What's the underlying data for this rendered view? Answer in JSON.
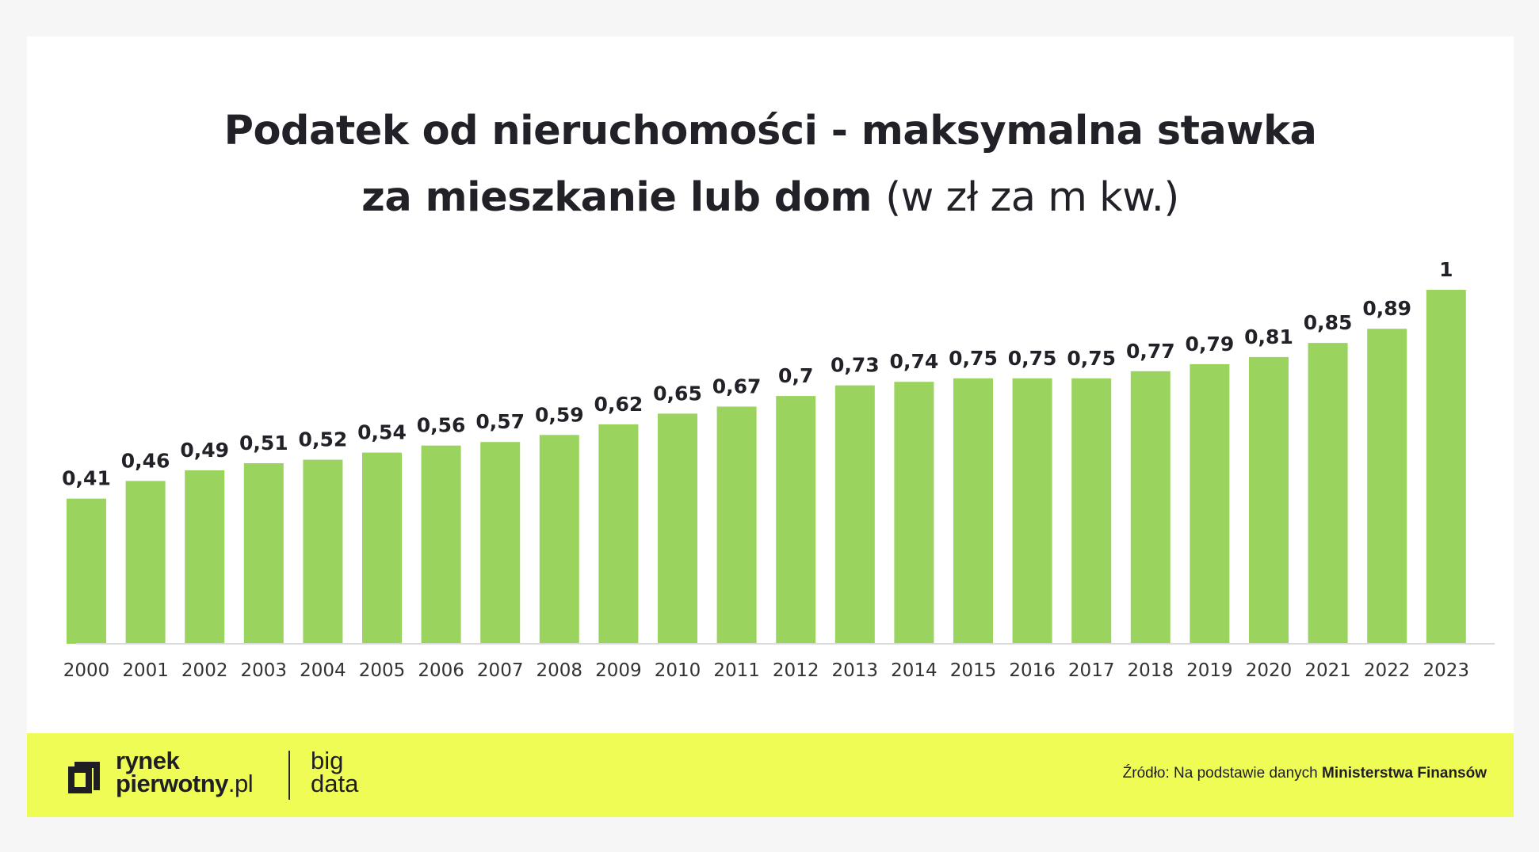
{
  "title": {
    "line1": "Podatek od nieruchomości - maksymalna stawka",
    "line2_bold": "za mieszkanie lub dom",
    "line2_light": "(w zł za m kw.)"
  },
  "colors": {
    "bar": "#9bd35f",
    "footer_bg": "#eefc55",
    "text": "#222128"
  },
  "chart_data": {
    "type": "bar",
    "title": "Podatek od nieruchomości - maksymalna stawka za mieszkanie lub dom (w zł za m kw.)",
    "categories": [
      "2000",
      "2001",
      "2002",
      "2003",
      "2004",
      "2005",
      "2006",
      "2007",
      "2008",
      "2009",
      "2010",
      "2011",
      "2012",
      "2013",
      "2014",
      "2015",
      "2016",
      "2017",
      "2018",
      "2019",
      "2020",
      "2021",
      "2022",
      "2023"
    ],
    "values": [
      0.41,
      0.46,
      0.49,
      0.51,
      0.52,
      0.54,
      0.56,
      0.57,
      0.59,
      0.62,
      0.65,
      0.67,
      0.7,
      0.73,
      0.74,
      0.75,
      0.75,
      0.75,
      0.77,
      0.79,
      0.81,
      0.85,
      0.89,
      1
    ],
    "labels": [
      "0,41",
      "0,46",
      "0,49",
      "0,51",
      "0,52",
      "0,54",
      "0,56",
      "0,57",
      "0,59",
      "0,62",
      "0,65",
      "0,67",
      "0,7",
      "0,73",
      "0,74",
      "0,75",
      "0,75",
      "0,75",
      "0,77",
      "0,79",
      "0,81",
      "0,85",
      "0,89",
      "1"
    ],
    "xlabel": "",
    "ylabel": "",
    "ylim": [
      0,
      1
    ],
    "grid": false,
    "legend": "none"
  },
  "footer": {
    "logo_line1": "rynek",
    "logo_line2": "pierwotny",
    "logo_tld": ".pl",
    "bigdata_line1": "big",
    "bigdata_line2": "data",
    "source_prefix": "Źródło: Na podstawie danych",
    "source_bold": "Ministerstwa Finansów"
  }
}
